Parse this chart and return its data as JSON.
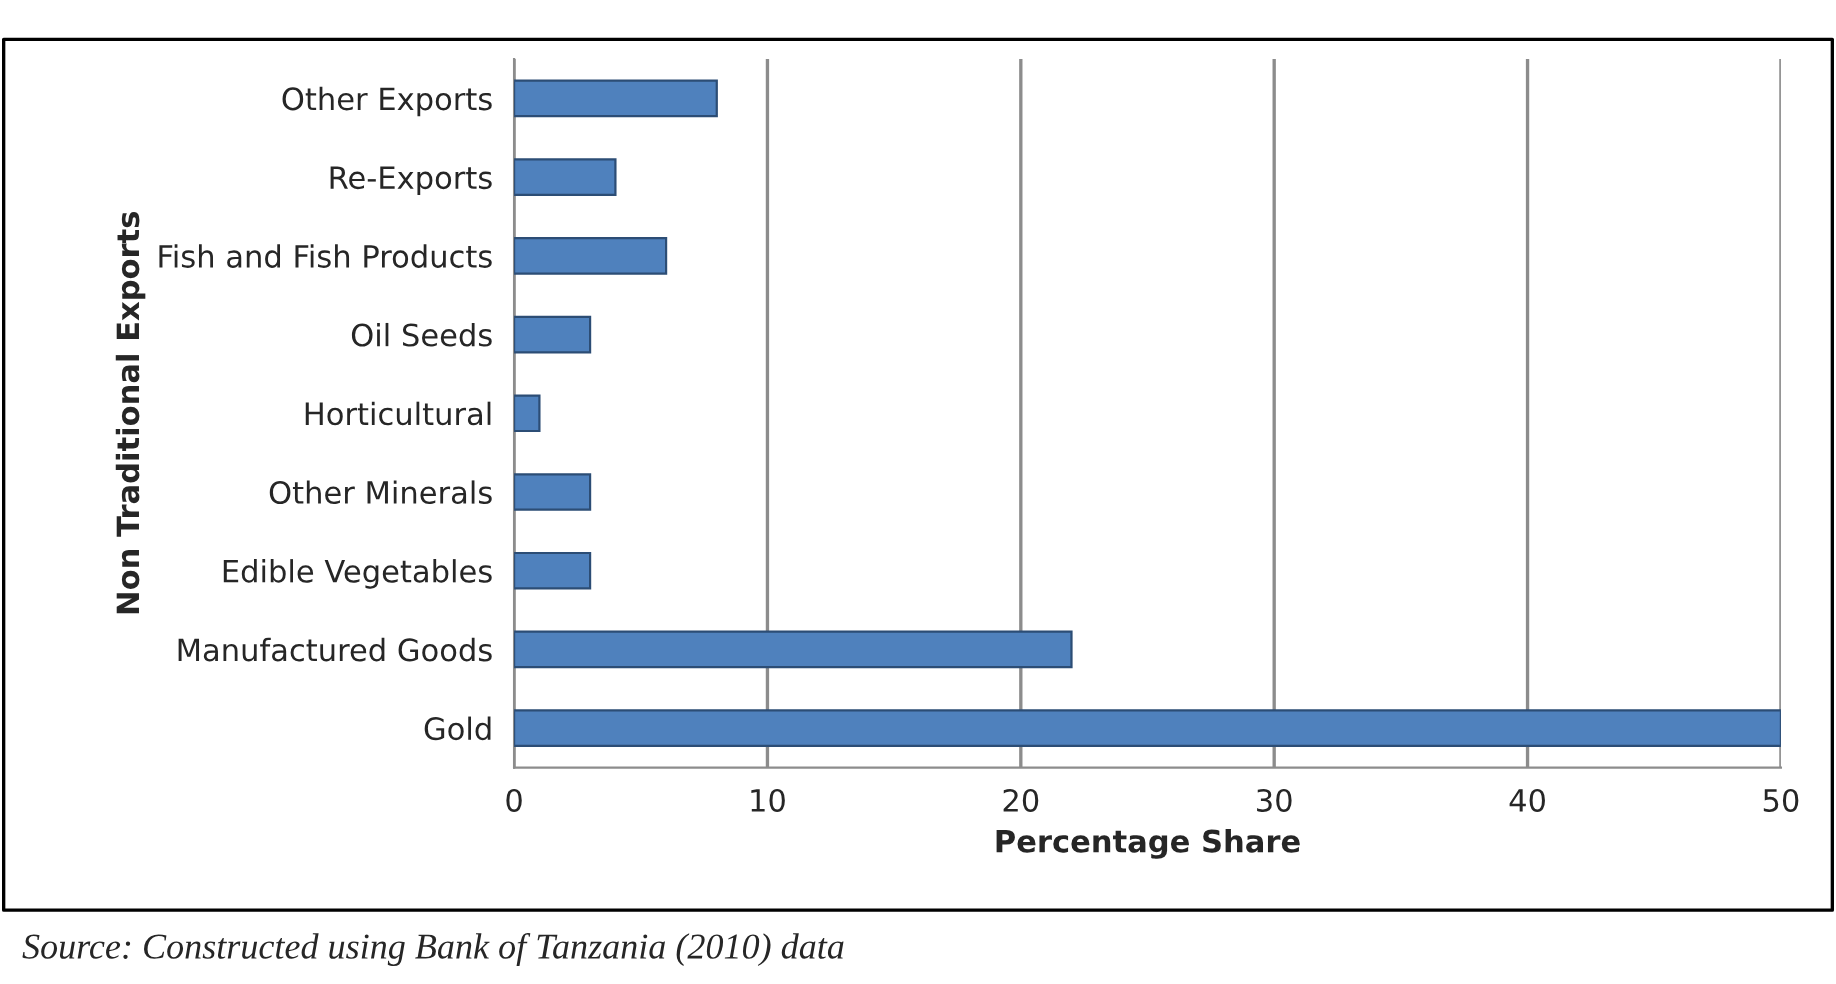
{
  "chart_data": {
    "type": "bar",
    "orientation": "horizontal",
    "categories": [
      "Other Exports",
      "Re-Exports",
      "Fish and Fish Products",
      "Oil Seeds",
      "Horticultural",
      "Other Minerals",
      "Edible Vegetables",
      "Manufactured Goods",
      "Gold"
    ],
    "values": [
      8,
      4,
      6,
      3,
      1,
      3,
      3,
      22,
      50
    ],
    "color": "#4f81bd",
    "xlim": [
      0,
      50
    ],
    "xticks": [
      0,
      10,
      20,
      30,
      40,
      50
    ],
    "grid": "x",
    "xlabel": "Percentage Share",
    "ylabel": "Non Traditional Exports",
    "annotations": [
      "Source: Constructed using Bank of Tanzania (2010) data"
    ]
  }
}
